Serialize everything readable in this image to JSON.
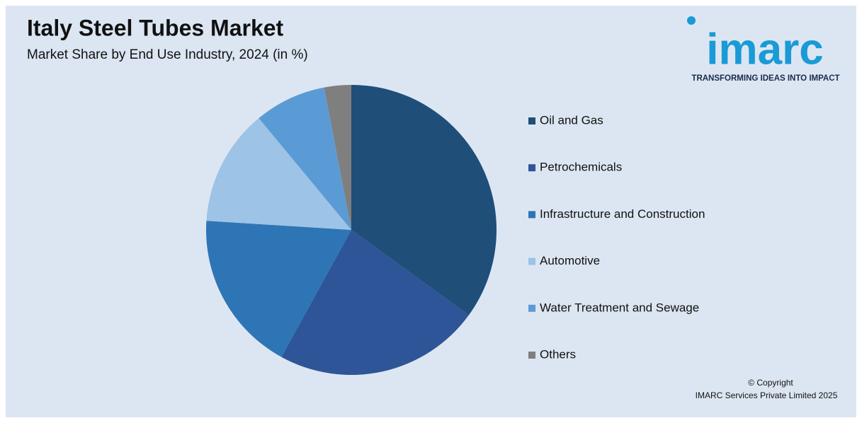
{
  "chart_data": {
    "type": "pie",
    "title": "Italy Steel Tubes Market",
    "subtitle": "Market Share by End Use Industry, 2024 (in %)",
    "categories": [
      "Oil and Gas",
      "Petrochemicals",
      "Infrastructure and Construction",
      "Automotive",
      "Water Treatment and Sewage",
      "Others"
    ],
    "values": [
      35,
      23,
      18,
      13,
      8,
      3
    ],
    "colors": [
      "#1f4e79",
      "#2e5597",
      "#2e75b6",
      "#9dc3e6",
      "#5b9bd5",
      "#7f7f7f"
    ],
    "legend": "right"
  },
  "logo": {
    "name": "imarc",
    "tagline": "TRANSFORMING IDEAS INTO IMPACT"
  },
  "footer": {
    "line1": "© Copyright",
    "line2": "IMARC Services Private Limited 2025"
  }
}
